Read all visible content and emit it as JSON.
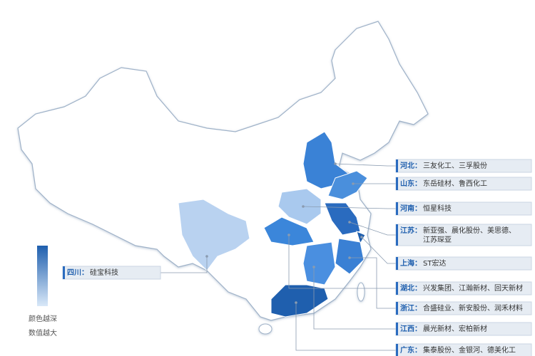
{
  "legend": {
    "high_label": "颜色越深",
    "low_label": "数值越大"
  },
  "callouts": [
    {
      "province": "河北：",
      "companies": [
        "三友化工、三孚股份"
      ]
    },
    {
      "province": "山东：",
      "companies": [
        "东岳硅材、鲁西化工"
      ]
    },
    {
      "province": "河南：",
      "companies": [
        "恒星科技"
      ]
    },
    {
      "province": "江苏：",
      "companies": [
        "新亚强、晨化股份、美思德、",
        "江苏琛亚"
      ]
    },
    {
      "province": "上海：",
      "companies": [
        "ST宏达"
      ]
    },
    {
      "province": "湖北：",
      "companies": [
        "兴发集团、江瀚新材、回天新材"
      ]
    },
    {
      "province": "浙江：",
      "companies": [
        "合盛硅业、新安股份、润禾材料"
      ]
    },
    {
      "province": "江西：",
      "companies": [
        "晨光新材、宏柏新材"
      ]
    },
    {
      "province": "广东：",
      "companies": [
        "集泰股份、金银河、德美化工"
      ]
    },
    {
      "province": "四川：",
      "companies": [
        "硅宝科技"
      ]
    }
  ]
}
